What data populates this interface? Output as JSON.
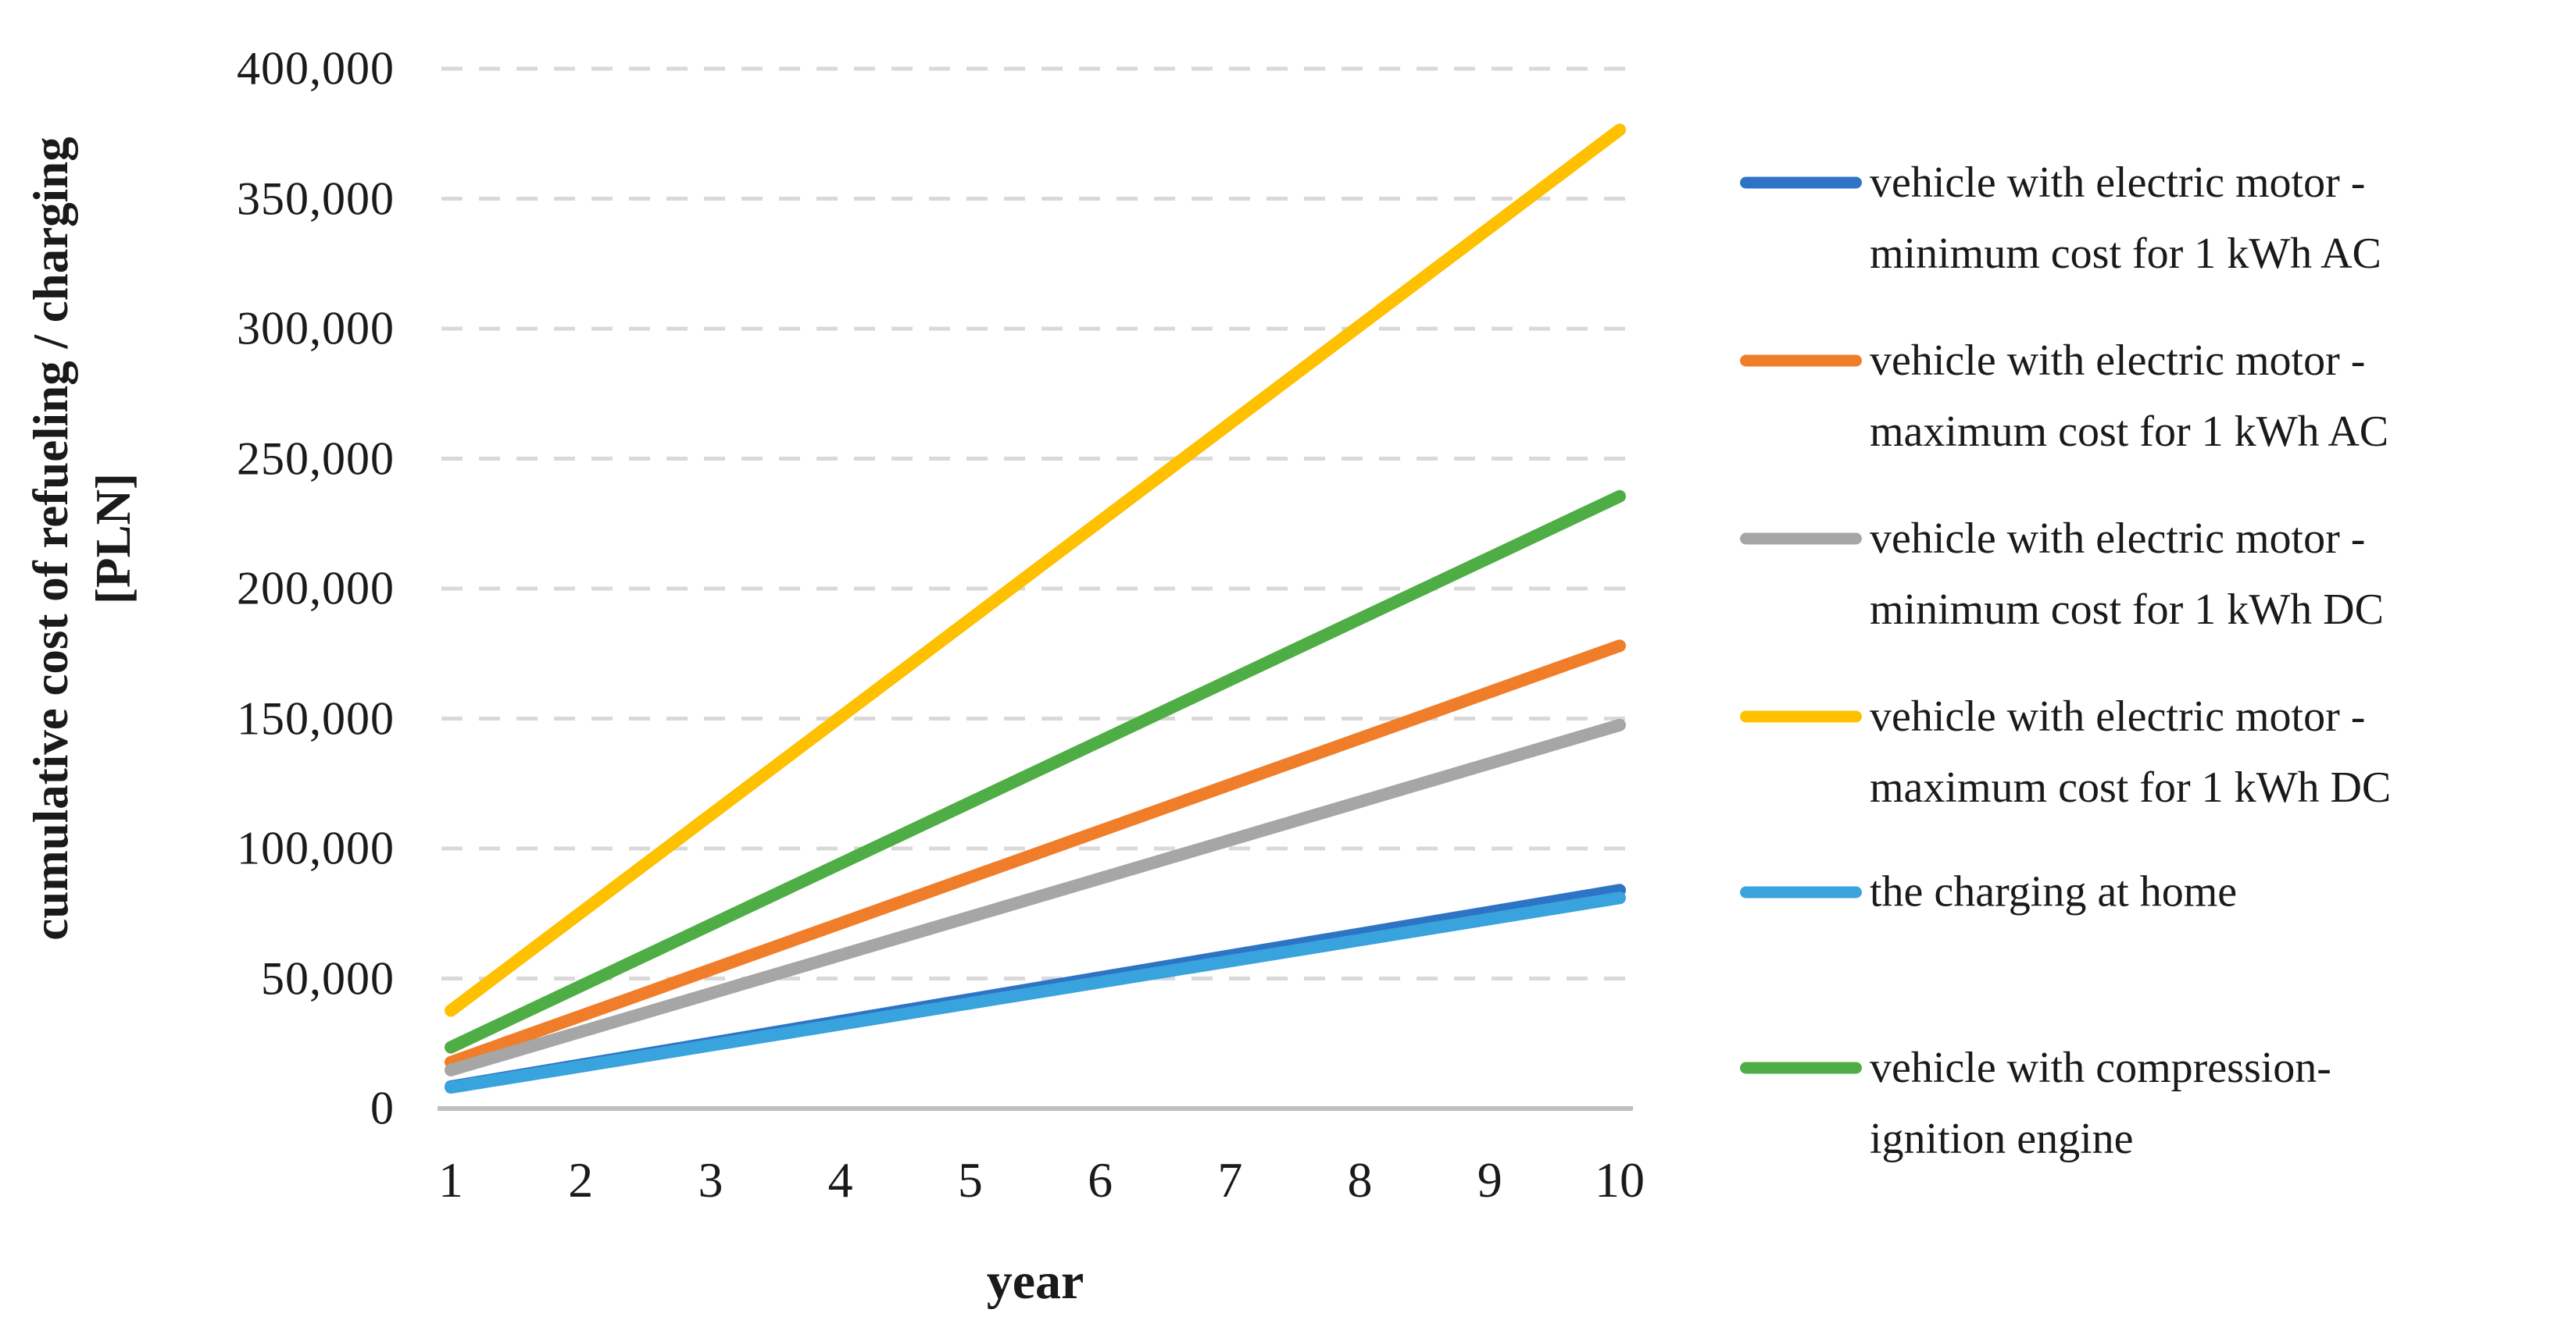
{
  "figure": {
    "background": "#ffffff",
    "text_color": "#1a1a1a",
    "gridline_color": "#d9d9d9",
    "axis_line_color": "#bfbfbf"
  },
  "chart_data": {
    "type": "line",
    "title": "",
    "xlabel": "year",
    "ylabel": "cumulative cost of refueling / charging [PLN]",
    "ylabel_lines": [
      "cumulative cost of refueling / charging",
      "[PLN]"
    ],
    "x": [
      1,
      2,
      3,
      4,
      5,
      6,
      7,
      8,
      9,
      10
    ],
    "x_tick_labels": [
      "1",
      "2",
      "3",
      "4",
      "5",
      "6",
      "7",
      "8",
      "9",
      "10"
    ],
    "y_tick_values": [
      0,
      50000,
      100000,
      150000,
      200000,
      250000,
      300000,
      350000,
      400000
    ],
    "y_tick_labels": [
      "0",
      "50,000",
      "100,000",
      "150,000",
      "200,000",
      "250,000",
      "300,000",
      "350,000",
      "400,000"
    ],
    "xlim": [
      1,
      10
    ],
    "ylim": [
      0,
      400000
    ],
    "grid": "horizontal dashed",
    "legend_position": "right",
    "series": [
      {
        "name": "vehicle with electric motor - minimum cost for 1 kWh AC",
        "legend_lines": [
          "vehicle with electric motor -",
          "minimum cost for 1 kWh AC"
        ],
        "color": "#2e74c6",
        "annual_cost_pln": 8400,
        "values": [
          8400,
          16800,
          25200,
          33600,
          42000,
          50400,
          58800,
          67200,
          75600,
          84000
        ]
      },
      {
        "name": "vehicle with electric motor - maximum cost for 1 kWh AC",
        "legend_lines": [
          "vehicle with electric motor -",
          "maximum cost for 1 kWh AC"
        ],
        "color": "#f07d29",
        "annual_cost_pln": 17800,
        "values": [
          17800,
          35600,
          53400,
          71200,
          89000,
          106800,
          124600,
          142400,
          160200,
          178000
        ]
      },
      {
        "name": "vehicle with electric motor - minimum cost for 1 kWh DC",
        "legend_lines": [
          "vehicle with electric motor -",
          "minimum cost for 1 kWh DC"
        ],
        "color": "#a6a6a6",
        "annual_cost_pln": 14750,
        "values": [
          14750,
          29500,
          44250,
          59000,
          73750,
          88500,
          103250,
          118000,
          132750,
          147500
        ]
      },
      {
        "name": "vehicle with electric motor - maximum cost for 1 kWh DC",
        "legend_lines": [
          "vehicle with electric motor -",
          "maximum cost for 1 kWh DC"
        ],
        "color": "#ffc000",
        "annual_cost_pln": 37650,
        "values": [
          37650,
          75300,
          112950,
          150600,
          188250,
          225900,
          263550,
          301200,
          338850,
          376500
        ]
      },
      {
        "name": "the charging at home",
        "legend_lines": [
          "the charging at home"
        ],
        "color": "#38a3dc",
        "annual_cost_pln": 8100,
        "values": [
          8100,
          16200,
          24300,
          32400,
          40500,
          48600,
          56700,
          64800,
          72900,
          81000
        ]
      },
      {
        "name": "vehicle with compression-ignition engine",
        "legend_lines": [
          "vehicle with compression-",
          "ignition engine"
        ],
        "color": "#4eae45",
        "annual_cost_pln": 23550,
        "values": [
          23550,
          47100,
          70650,
          94200,
          117750,
          141300,
          164850,
          188400,
          211950,
          235500
        ]
      }
    ]
  }
}
